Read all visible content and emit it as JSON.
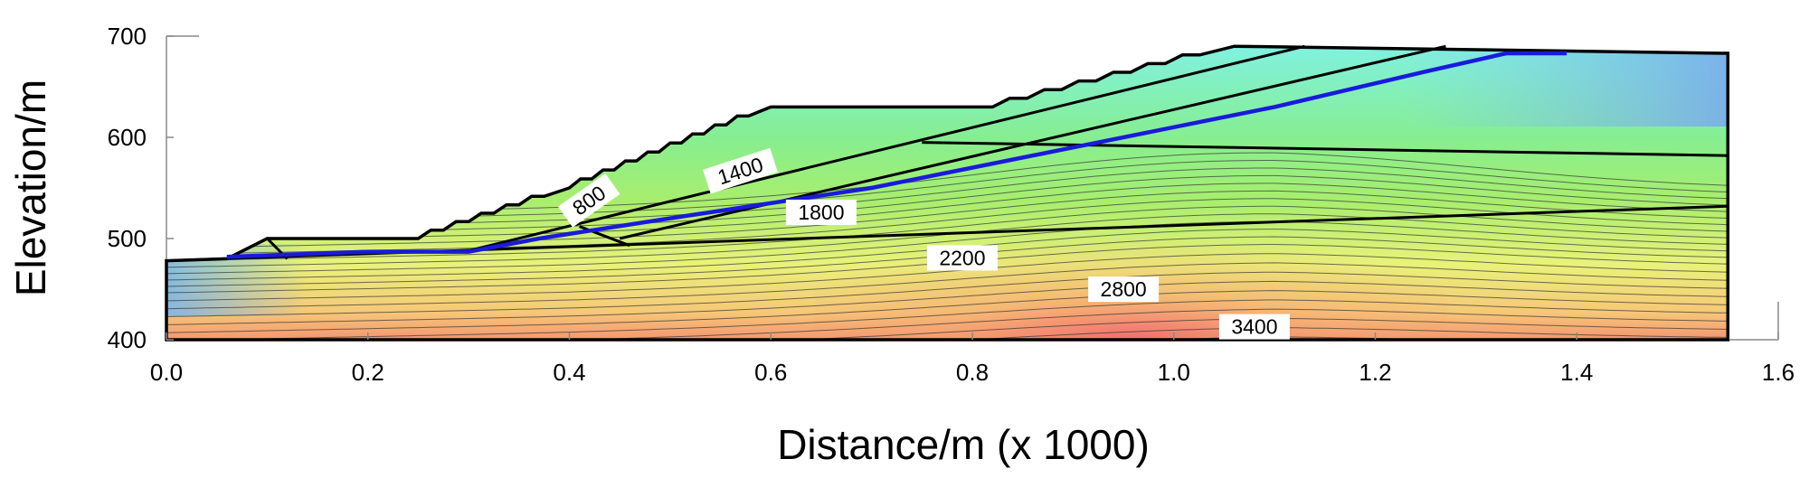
{
  "chart_data": {
    "type": "heatmap",
    "title": "",
    "xlabel": "Distance/m (x  1000)",
    "ylabel": "Elevation/m",
    "xlim": [
      0.0,
      1.6
    ],
    "ylim": [
      400,
      700
    ],
    "x_ticks": [
      "0.0",
      "0.2",
      "0.4",
      "0.6",
      "0.8",
      "1.0",
      "1.2",
      "1.4",
      "1.6"
    ],
    "y_ticks": [
      "400",
      "500",
      "600",
      "700"
    ],
    "grid": false,
    "colors": {
      "low": "#7fb6ee",
      "mid_low": "#7ff0f0",
      "mid": "#8cee7c",
      "mid_high": "#f2f27a",
      "high": "#f07a70",
      "slip_surface": "#1a1adc",
      "boundary": "#000000"
    },
    "contour_labels": [
      {
        "text": "800",
        "x": 0.42,
        "y": 537
      },
      {
        "text": "1400",
        "x": 0.57,
        "y": 566
      },
      {
        "text": "1800",
        "x": 0.65,
        "y": 525
      },
      {
        "text": "2200",
        "x": 0.79,
        "y": 480
      },
      {
        "text": "2800",
        "x": 0.95,
        "y": 449
      },
      {
        "text": "3400",
        "x": 1.08,
        "y": 412
      }
    ],
    "ground_surface": [
      [
        0.0,
        478
      ],
      [
        0.06,
        480
      ],
      [
        0.1,
        500
      ],
      [
        0.25,
        500
      ],
      [
        0.4,
        550
      ],
      [
        0.6,
        630
      ],
      [
        0.82,
        630
      ],
      [
        1.06,
        690
      ],
      [
        1.55,
        683
      ],
      [
        1.55,
        400
      ],
      [
        0.0,
        400
      ]
    ],
    "layer_boundaries": [
      [
        [
          0.0,
          478
        ],
        [
          1.55,
          532
        ]
      ],
      [
        [
          0.3,
          488
        ],
        [
          1.13,
          690
        ]
      ],
      [
        [
          0.45,
          500
        ],
        [
          1.27,
          690
        ]
      ],
      [
        [
          0.75,
          595
        ],
        [
          1.55,
          582
        ]
      ],
      [
        [
          0.41,
          512
        ],
        [
          0.46,
          493
        ]
      ],
      [
        [
          0.06,
          480
        ],
        [
          0.1,
          500
        ],
        [
          0.12,
          480
        ]
      ]
    ],
    "slip_surface": [
      [
        0.06,
        482
      ],
      [
        0.2,
        487
      ],
      [
        0.3,
        487
      ],
      [
        0.37,
        500
      ],
      [
        0.5,
        520
      ],
      [
        0.7,
        550
      ],
      [
        0.9,
        590
      ],
      [
        1.1,
        630
      ],
      [
        1.25,
        665
      ],
      [
        1.33,
        683
      ],
      [
        1.39,
        683
      ]
    ]
  }
}
